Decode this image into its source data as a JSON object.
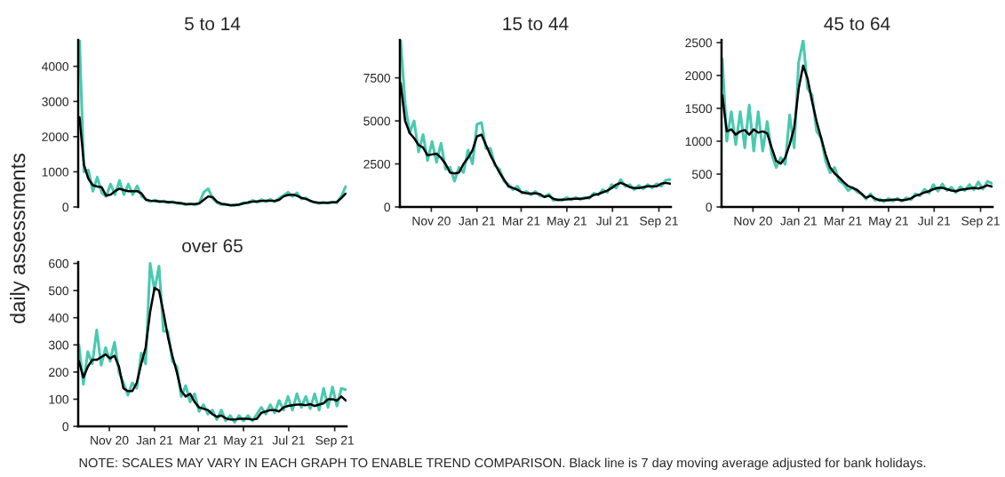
{
  "chart_data": [
    {
      "type": "line",
      "title": "5 to 14",
      "ylabel": "daily assessments",
      "tick_labels": "y",
      "grid": false,
      "legend": false,
      "ylim": [
        0,
        4750
      ],
      "yticks": [
        0,
        1000,
        2000,
        3000,
        4000
      ],
      "categories": [
        null,
        null,
        null,
        null,
        null,
        null,
        null,
        null,
        null,
        null,
        null,
        null,
        null,
        null,
        null,
        null,
        null,
        null,
        null,
        null,
        null,
        null,
        null,
        null,
        null,
        null,
        null,
        null,
        null,
        null,
        null,
        null,
        null,
        null,
        null,
        null,
        null,
        null,
        null,
        null,
        null,
        null,
        null,
        null,
        null,
        null,
        null,
        null,
        null,
        null,
        null,
        null,
        null,
        null,
        null,
        null,
        null,
        null,
        null,
        null,
        null
      ],
      "series": [
        {
          "color": "#48c9b0",
          "values": [
            4750,
            1000,
            1050,
            450,
            850,
            400,
            300,
            650,
            350,
            750,
            350,
            650,
            350,
            600,
            300,
            220,
            150,
            200,
            140,
            170,
            120,
            150,
            100,
            110,
            60,
            90,
            60,
            110,
            420,
            520,
            250,
            120,
            70,
            80,
            40,
            60,
            60,
            120,
            110,
            190,
            130,
            210,
            150,
            220,
            150,
            250,
            330,
            420,
            300,
            400,
            230,
            260,
            160,
            140,
            100,
            130,
            110,
            140,
            120,
            300,
            580
          ]
        },
        {
          "color": "#000000",
          "values": [
            2550,
            1200,
            800,
            620,
            580,
            560,
            320,
            350,
            450,
            520,
            480,
            450,
            450,
            450,
            380,
            200,
            180,
            170,
            160,
            150,
            140,
            130,
            120,
            100,
            80,
            80,
            80,
            100,
            200,
            300,
            280,
            150,
            90,
            70,
            50,
            50,
            70,
            100,
            130,
            150,
            160,
            170,
            180,
            180,
            170,
            200,
            300,
            340,
            350,
            320,
            260,
            230,
            180,
            130,
            120,
            120,
            120,
            130,
            140,
            250,
            380
          ]
        }
      ]
    },
    {
      "type": "line",
      "title": "15 to 44",
      "grid": false,
      "legend": false,
      "xlim": [
        "2020-09-20",
        "2021-09-17"
      ],
      "ylim": [
        0,
        9700
      ],
      "yticks": [
        0,
        2500,
        5000,
        7500
      ],
      "xticks": [
        {
          "value": "2020-11-01",
          "label": "Nov 20"
        },
        {
          "value": "2021-01-01",
          "label": "Jan 21"
        },
        {
          "value": "2021-03-01",
          "label": "Mar 21"
        },
        {
          "value": "2021-05-01",
          "label": "May 21"
        },
        {
          "value": "2021-07-01",
          "label": "Jul 21"
        },
        {
          "value": "2021-09-01",
          "label": "Sep 21"
        }
      ],
      "x": [
        "2020-09-21",
        "2020-09-27",
        "2020-10-03",
        "2020-10-09",
        "2020-10-15",
        "2020-10-21",
        "2020-10-27",
        "2020-11-02",
        "2020-11-08",
        "2020-11-14",
        "2020-11-20",
        "2020-11-26",
        "2020-12-02",
        "2020-12-08",
        "2020-12-14",
        "2020-12-20",
        "2020-12-26",
        "2021-01-01",
        "2021-01-07",
        "2021-01-13",
        "2021-01-19",
        "2021-01-25",
        "2021-01-31",
        "2021-02-06",
        "2021-02-12",
        "2021-02-18",
        "2021-02-24",
        "2021-03-02",
        "2021-03-08",
        "2021-03-14",
        "2021-03-20",
        "2021-03-26",
        "2021-04-01",
        "2021-04-07",
        "2021-04-13",
        "2021-04-19",
        "2021-04-25",
        "2021-05-01",
        "2021-05-07",
        "2021-05-13",
        "2021-05-19",
        "2021-05-25",
        "2021-05-31",
        "2021-06-06",
        "2021-06-12",
        "2021-06-18",
        "2021-06-24",
        "2021-06-30",
        "2021-07-06",
        "2021-07-12",
        "2021-07-18",
        "2021-07-24",
        "2021-07-30",
        "2021-08-05",
        "2021-08-11",
        "2021-08-17",
        "2021-08-23",
        "2021-08-29",
        "2021-09-04",
        "2021-09-10",
        "2021-09-16"
      ],
      "series": [
        {
          "color": "#48c9b0",
          "values": [
            9700,
            6000,
            4300,
            5000,
            3200,
            4200,
            2700,
            3800,
            2600,
            3700,
            2200,
            2300,
            1500,
            2300,
            2000,
            3300,
            2500,
            4800,
            4900,
            3400,
            3400,
            2400,
            2200,
            1500,
            1300,
            1000,
            1200,
            800,
            900,
            700,
            900,
            650,
            600,
            750,
            380,
            450,
            380,
            550,
            420,
            550,
            430,
            550,
            500,
            800,
            700,
            1000,
            850,
            1300,
            1100,
            1600,
            1200,
            1300,
            1000,
            1250,
            1050,
            1300,
            1100,
            1350,
            1200,
            1550,
            1600
          ]
        },
        {
          "color": "#000000",
          "values": [
            7200,
            5000,
            4300,
            4000,
            3600,
            3450,
            3000,
            3050,
            3100,
            2850,
            2500,
            2000,
            1950,
            2000,
            2500,
            2850,
            3300,
            4100,
            4200,
            3600,
            3000,
            2500,
            2000,
            1600,
            1200,
            1100,
            1000,
            850,
            800,
            780,
            800,
            750,
            580,
            650,
            480,
            400,
            420,
            440,
            470,
            480,
            480,
            500,
            550,
            700,
            750,
            850,
            950,
            1100,
            1300,
            1400,
            1300,
            1150,
            1100,
            1100,
            1150,
            1200,
            1200,
            1200,
            1350,
            1400,
            1350
          ]
        }
      ]
    },
    {
      "type": "line",
      "title": "45 to 64",
      "grid": false,
      "legend": false,
      "xlim": [
        "2020-09-20",
        "2021-09-17"
      ],
      "ylim": [
        0,
        2540
      ],
      "yticks": [
        0,
        500,
        1000,
        1500,
        2000,
        2500
      ],
      "xticks": [
        {
          "value": "2020-11-01",
          "label": "Nov 20"
        },
        {
          "value": "2021-01-01",
          "label": "Jan 21"
        },
        {
          "value": "2021-03-01",
          "label": "Mar 21"
        },
        {
          "value": "2021-05-01",
          "label": "May 21"
        },
        {
          "value": "2021-07-01",
          "label": "Jul 21"
        },
        {
          "value": "2021-09-01",
          "label": "Sep 21"
        }
      ],
      "x": [
        "2020-09-21",
        "2020-09-27",
        "2020-10-03",
        "2020-10-09",
        "2020-10-15",
        "2020-10-21",
        "2020-10-27",
        "2020-11-02",
        "2020-11-08",
        "2020-11-14",
        "2020-11-20",
        "2020-11-26",
        "2020-12-02",
        "2020-12-08",
        "2020-12-14",
        "2020-12-20",
        "2020-12-26",
        "2021-01-01",
        "2021-01-07",
        "2021-01-13",
        "2021-01-19",
        "2021-01-25",
        "2021-01-31",
        "2021-02-06",
        "2021-02-12",
        "2021-02-18",
        "2021-02-24",
        "2021-03-02",
        "2021-03-08",
        "2021-03-14",
        "2021-03-20",
        "2021-03-26",
        "2021-04-01",
        "2021-04-07",
        "2021-04-13",
        "2021-04-19",
        "2021-04-25",
        "2021-05-01",
        "2021-05-07",
        "2021-05-13",
        "2021-05-19",
        "2021-05-25",
        "2021-05-31",
        "2021-06-06",
        "2021-06-12",
        "2021-06-18",
        "2021-06-24",
        "2021-06-30",
        "2021-07-06",
        "2021-07-12",
        "2021-07-18",
        "2021-07-24",
        "2021-07-30",
        "2021-08-05",
        "2021-08-11",
        "2021-08-17",
        "2021-08-23",
        "2021-08-29",
        "2021-09-04",
        "2021-09-10",
        "2021-09-16"
      ],
      "series": [
        {
          "color": "#48c9b0",
          "values": [
            2250,
            1000,
            1450,
            950,
            1450,
            900,
            1550,
            850,
            1450,
            850,
            1300,
            800,
            600,
            750,
            650,
            1400,
            900,
            2200,
            2540,
            1800,
            1700,
            1150,
            1050,
            700,
            520,
            600,
            400,
            350,
            250,
            300,
            230,
            200,
            120,
            200,
            100,
            120,
            80,
            130,
            90,
            130,
            90,
            140,
            110,
            200,
            170,
            270,
            210,
            340,
            240,
            350,
            250,
            300,
            220,
            310,
            250,
            340,
            260,
            380,
            270,
            390,
            360
          ]
        },
        {
          "color": "#000000",
          "values": [
            1700,
            1150,
            1180,
            1100,
            1150,
            1170,
            1100,
            1180,
            1130,
            1150,
            1120,
            900,
            700,
            660,
            750,
            950,
            1200,
            1800,
            2150,
            1950,
            1600,
            1300,
            1050,
            800,
            600,
            510,
            450,
            380,
            320,
            290,
            260,
            200,
            140,
            170,
            130,
            100,
            100,
            100,
            110,
            110,
            100,
            110,
            130,
            170,
            190,
            220,
            240,
            270,
            290,
            290,
            270,
            250,
            240,
            260,
            270,
            280,
            290,
            280,
            300,
            330,
            310
          ]
        }
      ]
    },
    {
      "type": "line",
      "title": "over 65",
      "grid": false,
      "legend": false,
      "xlim": [
        "2020-09-20",
        "2021-09-17"
      ],
      "ylim": [
        0,
        605
      ],
      "yticks": [
        0,
        100,
        200,
        300,
        400,
        500,
        600
      ],
      "xticks": [
        {
          "value": "2020-11-01",
          "label": "Nov 20"
        },
        {
          "value": "2021-01-01",
          "label": "Jan 21"
        },
        {
          "value": "2021-03-01",
          "label": "Mar 21"
        },
        {
          "value": "2021-05-01",
          "label": "May 21"
        },
        {
          "value": "2021-07-01",
          "label": "Jul 21"
        },
        {
          "value": "2021-09-01",
          "label": "Sep 21"
        }
      ],
      "annotations": [
        "NOTE: SCALES MAY VARY IN EACH GRAPH TO ENABLE TREND COMPARISON. Black line is 7 day moving average adjusted for bank holidays."
      ],
      "x": [
        "2020-09-21",
        "2020-09-27",
        "2020-10-03",
        "2020-10-09",
        "2020-10-15",
        "2020-10-21",
        "2020-10-27",
        "2020-11-02",
        "2020-11-08",
        "2020-11-14",
        "2020-11-20",
        "2020-11-26",
        "2020-12-02",
        "2020-12-08",
        "2020-12-14",
        "2020-12-20",
        "2020-12-26",
        "2021-01-01",
        "2021-01-07",
        "2021-01-13",
        "2021-01-19",
        "2021-01-25",
        "2021-01-31",
        "2021-02-06",
        "2021-02-12",
        "2021-02-18",
        "2021-02-24",
        "2021-03-02",
        "2021-03-08",
        "2021-03-14",
        "2021-03-20",
        "2021-03-26",
        "2021-04-01",
        "2021-04-07",
        "2021-04-13",
        "2021-04-19",
        "2021-04-25",
        "2021-05-01",
        "2021-05-07",
        "2021-05-13",
        "2021-05-19",
        "2021-05-25",
        "2021-05-31",
        "2021-06-06",
        "2021-06-12",
        "2021-06-18",
        "2021-06-24",
        "2021-06-30",
        "2021-07-06",
        "2021-07-12",
        "2021-07-18",
        "2021-07-24",
        "2021-07-30",
        "2021-08-05",
        "2021-08-11",
        "2021-08-17",
        "2021-08-23",
        "2021-08-29",
        "2021-09-04",
        "2021-09-10",
        "2021-09-16"
      ],
      "series": [
        {
          "color": "#48c9b0",
          "values": [
            300,
            155,
            275,
            230,
            355,
            225,
            290,
            240,
            310,
            200,
            160,
            115,
            160,
            140,
            270,
            230,
            600,
            500,
            590,
            350,
            350,
            240,
            220,
            110,
            150,
            90,
            120,
            55,
            80,
            45,
            60,
            25,
            60,
            20,
            40,
            15,
            40,
            20,
            40,
            20,
            45,
            70,
            45,
            80,
            50,
            95,
            60,
            110,
            60,
            120,
            70,
            110,
            65,
            120,
            60,
            140,
            70,
            145,
            75,
            140,
            135
          ]
        },
        {
          "color": "#000000",
          "values": [
            240,
            180,
            220,
            245,
            245,
            255,
            265,
            250,
            260,
            220,
            140,
            130,
            130,
            160,
            230,
            290,
            420,
            510,
            500,
            420,
            330,
            260,
            200,
            130,
            110,
            120,
            90,
            70,
            65,
            60,
            45,
            35,
            40,
            30,
            25,
            25,
            28,
            28,
            28,
            25,
            28,
            50,
            55,
            60,
            60,
            55,
            70,
            75,
            78,
            80,
            80,
            78,
            82,
            75,
            80,
            85,
            100,
            100,
            95,
            110,
            95
          ]
        }
      ]
    }
  ]
}
